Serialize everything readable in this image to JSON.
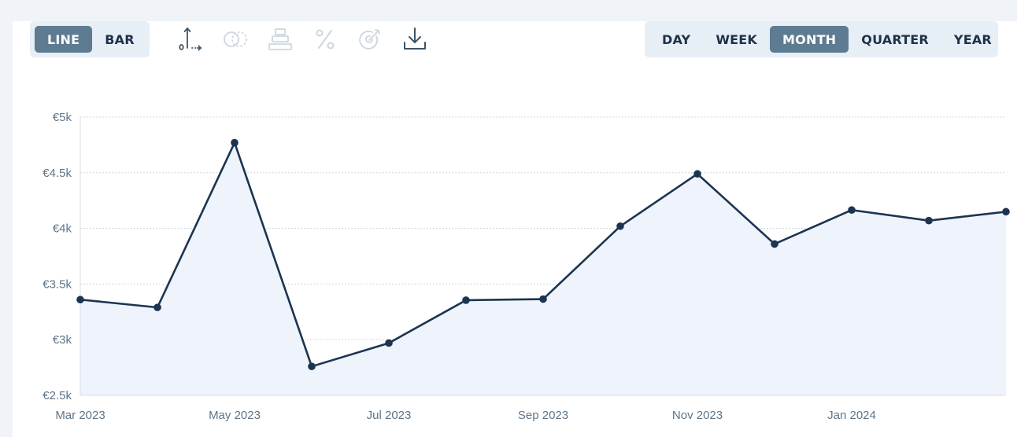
{
  "toolbar": {
    "chart_types": [
      {
        "label": "LINE",
        "active": true
      },
      {
        "label": "BAR",
        "active": false
      }
    ],
    "ranges": [
      {
        "label": "DAY",
        "active": false
      },
      {
        "label": "WEEK",
        "active": false
      },
      {
        "label": "MONTH",
        "active": true
      },
      {
        "label": "QUARTER",
        "active": false
      },
      {
        "label": "YEAR",
        "active": false
      }
    ],
    "tools": [
      {
        "icon": "axis-zero-icon",
        "enabled": true
      },
      {
        "icon": "compare-icon",
        "enabled": false
      },
      {
        "icon": "stack-icon",
        "enabled": false
      },
      {
        "icon": "percent-icon",
        "enabled": false
      },
      {
        "icon": "target-icon",
        "enabled": false
      },
      {
        "icon": "download-icon",
        "enabled": true
      }
    ]
  },
  "colors": {
    "line": "#1c3450",
    "fill": "#eef3fc",
    "grid": "#cfd8e2",
    "active_button": "#5d7b91"
  },
  "chart_data": {
    "type": "area",
    "x": [
      "2023-03",
      "2023-04",
      "2023-05",
      "2023-06",
      "2023-07",
      "2023-08",
      "2023-09",
      "2023-10",
      "2023-11",
      "2023-12",
      "2024-01",
      "2024-02",
      "2024-03"
    ],
    "values": [
      3360,
      3290,
      4770,
      2760,
      2970,
      3355,
      3365,
      4020,
      4490,
      3860,
      4165,
      4070,
      4150
    ],
    "ylim": [
      2500,
      5000
    ],
    "y_ticks": [
      {
        "value": 2500,
        "label": "€2.5k"
      },
      {
        "value": 3000,
        "label": "€3k"
      },
      {
        "value": 3500,
        "label": "€3.5k"
      },
      {
        "value": 4000,
        "label": "€4k"
      },
      {
        "value": 4500,
        "label": "€4.5k"
      },
      {
        "value": 5000,
        "label": "€5k"
      }
    ],
    "x_ticks": [
      {
        "index": 0,
        "label": "Mar 2023"
      },
      {
        "index": 2,
        "label": "May 2023"
      },
      {
        "index": 4,
        "label": "Jul 2023"
      },
      {
        "index": 6,
        "label": "Sep 2023"
      },
      {
        "index": 8,
        "label": "Nov 2023"
      },
      {
        "index": 10,
        "label": "Jan 2024"
      }
    ],
    "grid": true,
    "title": "",
    "xlabel": "",
    "ylabel": ""
  }
}
